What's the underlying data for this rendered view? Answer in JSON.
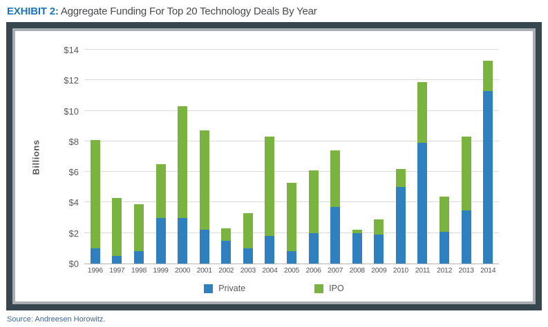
{
  "page": {
    "title_prefix": "EXHIBIT 2:",
    "title_text": "Aggregate Funding For Top 20 Technology Deals By Year",
    "source": "Source: Andreesen Horowitz."
  },
  "frame_colors": {
    "outer": "#37474f",
    "inner": "#a8aeb1"
  },
  "chart_data": {
    "type": "bar",
    "stacked": true,
    "title": "Aggregate Funding For Top 20 Technology Deals By Year",
    "categories": [
      "1996",
      "1997",
      "1998",
      "1999",
      "2000",
      "2001",
      "2002",
      "2003",
      "2004",
      "2005",
      "2006",
      "2007",
      "2008",
      "2009",
      "2010",
      "2011",
      "2012",
      "2013",
      "2014"
    ],
    "series": [
      {
        "name": "Private",
        "color": "#2e80bf",
        "values": [
          1.0,
          0.5,
          0.8,
          3.0,
          3.0,
          2.2,
          1.5,
          1.0,
          1.8,
          0.8,
          2.0,
          3.7,
          2.0,
          1.9,
          5.0,
          7.9,
          2.1,
          3.5,
          11.3
        ]
      },
      {
        "name": "IPO",
        "color": "#7ab33f",
        "values": [
          7.1,
          3.8,
          3.1,
          3.5,
          7.3,
          6.5,
          0.8,
          2.3,
          6.5,
          4.5,
          4.1,
          3.7,
          0.2,
          1.0,
          1.2,
          4.0,
          2.3,
          4.8,
          2.0
        ]
      }
    ],
    "totals": [
      8.1,
      4.3,
      3.9,
      6.5,
      10.3,
      8.7,
      2.3,
      3.3,
      8.3,
      5.3,
      6.1,
      7.4,
      2.2,
      2.9,
      6.2,
      11.9,
      4.4,
      8.3,
      13.3
    ],
    "ylabel": "Billions",
    "ylim": [
      0,
      14
    ],
    "ytick_step": 2,
    "ytick_prefix": "$",
    "grid": true,
    "legend_position": "bottom"
  }
}
